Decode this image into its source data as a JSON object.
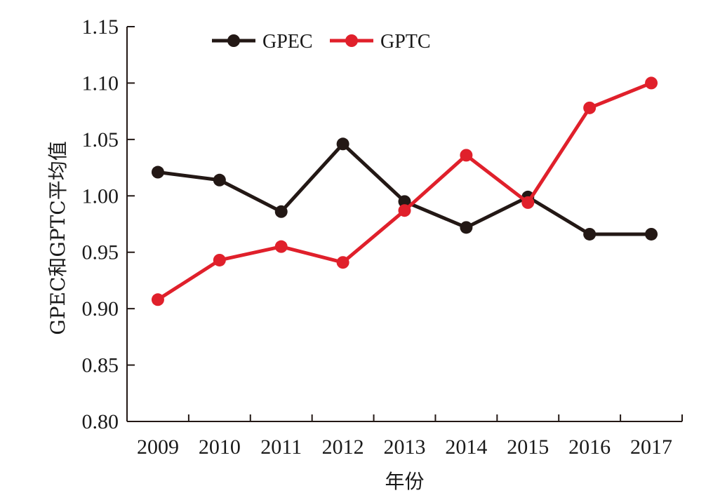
{
  "chart_data": {
    "type": "line",
    "categories": [
      "2009",
      "2010",
      "2011",
      "2012",
      "2013",
      "2014",
      "2015",
      "2016",
      "2017"
    ],
    "series": [
      {
        "name": "GPEC",
        "color": "#231815",
        "values": [
          1.021,
          1.014,
          0.986,
          1.046,
          0.995,
          0.972,
          0.999,
          0.966,
          0.966
        ]
      },
      {
        "name": "GPTC",
        "color": "#e0202b",
        "values": [
          0.908,
          0.943,
          0.955,
          0.941,
          0.987,
          1.036,
          0.994,
          1.078,
          1.1
        ]
      }
    ],
    "xlabel": "年份",
    "ylabel": "GPEC和GPTC平均值",
    "ylim": [
      0.8,
      1.15
    ],
    "yticks": [
      "0.80",
      "0.85",
      "0.90",
      "0.95",
      "1.00",
      "1.05",
      "1.10",
      "1.15"
    ],
    "grid": false,
    "legend": "top-left"
  }
}
